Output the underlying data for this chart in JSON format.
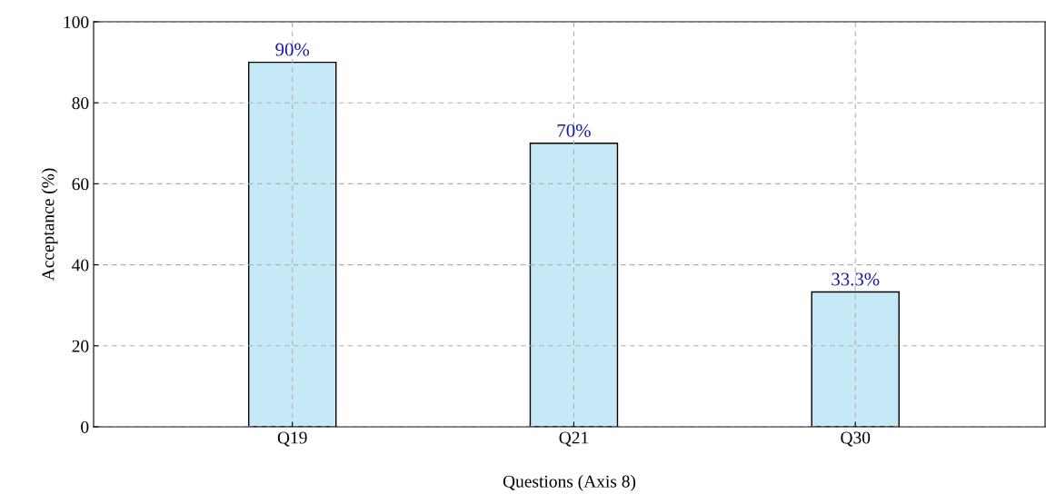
{
  "chart_data": {
    "type": "bar",
    "xlabel": "Questions (Axis 8)",
    "ylabel": "Acceptance (%)",
    "categories": [
      "Q19",
      "Q21",
      "Q30"
    ],
    "values": [
      90,
      70,
      33.3
    ],
    "value_labels": [
      "90%",
      "70%",
      "33.3%"
    ],
    "color": "#c6e9f8",
    "ylim": [
      0,
      100
    ],
    "yticks": [
      0,
      20,
      40,
      60,
      80,
      100
    ],
    "grid": true
  }
}
